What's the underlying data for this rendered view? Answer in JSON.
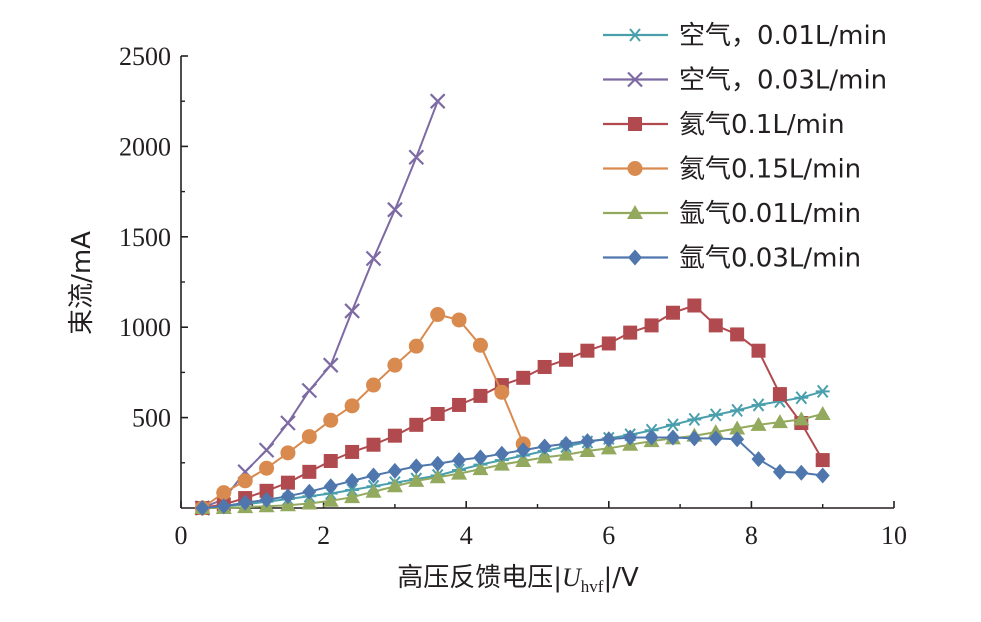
{
  "chart_data": {
    "type": "line",
    "xlabel_main": "高压反馈电压|",
    "xlabel_var": "U",
    "xlabel_sub": "hvf",
    "xlabel_tail": "|/V",
    "ylabel": "束流/mA",
    "xlim": [
      0,
      10
    ],
    "ylim": [
      0,
      2500
    ],
    "xticks": [
      "0",
      "2",
      "4",
      "6",
      "8",
      "10"
    ],
    "yticks": [
      "500",
      "1000",
      "1500",
      "2000",
      "2500"
    ],
    "legend_position": "top-right",
    "series": [
      {
        "name": "空气，0.01L/min",
        "color": "#4a9fad",
        "marker": "asterisk",
        "x": [
          0.3,
          0.6,
          0.9,
          1.2,
          1.5,
          1.8,
          2.1,
          2.4,
          2.7,
          3.0,
          3.3,
          3.6,
          3.9,
          4.2,
          4.5,
          4.8,
          5.1,
          5.4,
          5.7,
          6.0,
          6.3,
          6.6,
          6.9,
          7.2,
          7.5,
          7.8,
          8.1,
          8.4,
          8.7,
          9.0
        ],
        "y": [
          0,
          10,
          20,
          35,
          50,
          65,
          80,
          100,
          120,
          140,
          160,
          180,
          210,
          240,
          265,
          290,
          315,
          340,
          365,
          385,
          405,
          430,
          460,
          490,
          515,
          540,
          570,
          590,
          610,
          645
        ]
      },
      {
        "name": "空气，0.03L/min",
        "color": "#7d6aa3",
        "marker": "x",
        "x": [
          0.3,
          0.6,
          0.9,
          1.2,
          1.5,
          1.8,
          2.1,
          2.4,
          2.7,
          3.0,
          3.3,
          3.6
        ],
        "y": [
          0,
          50,
          200,
          320,
          470,
          650,
          790,
          1090,
          1380,
          1650,
          1940,
          2250
        ]
      },
      {
        "name": "氦气0.1L/min",
        "color": "#b04a4e",
        "marker": "square",
        "x": [
          0.3,
          0.6,
          0.9,
          1.2,
          1.5,
          1.8,
          2.1,
          2.4,
          2.7,
          3.0,
          3.3,
          3.6,
          3.9,
          4.2,
          4.5,
          4.8,
          5.1,
          5.4,
          5.7,
          6.0,
          6.3,
          6.6,
          6.9,
          7.2,
          7.5,
          7.8,
          8.1,
          8.4,
          8.7,
          9.0
        ],
        "y": [
          0,
          20,
          55,
          95,
          140,
          200,
          260,
          310,
          350,
          400,
          460,
          520,
          570,
          620,
          680,
          720,
          780,
          820,
          870,
          910,
          970,
          1010,
          1080,
          1120,
          1010,
          960,
          870,
          630,
          470,
          265
        ]
      },
      {
        "name": "氦气0.15L/min",
        "color": "#d98a4e",
        "marker": "circle",
        "x": [
          0.3,
          0.6,
          0.9,
          1.2,
          1.5,
          1.8,
          2.1,
          2.4,
          2.7,
          3.0,
          3.3,
          3.6,
          3.9,
          4.2,
          4.5,
          4.8
        ],
        "y": [
          0,
          85,
          150,
          220,
          305,
          395,
          485,
          565,
          680,
          790,
          895,
          1070,
          1040,
          900,
          640,
          355
        ]
      },
      {
        "name": "氩气0.01L/min",
        "color": "#93aa5e",
        "marker": "triangle",
        "x": [
          0.3,
          0.6,
          0.9,
          1.2,
          1.5,
          1.8,
          2.1,
          2.4,
          2.7,
          3.0,
          3.3,
          3.6,
          3.9,
          4.2,
          4.5,
          4.8,
          5.1,
          5.4,
          5.7,
          6.0,
          6.3,
          6.6,
          6.9,
          7.2,
          7.5,
          7.8,
          8.1,
          8.4,
          8.7,
          9.0
        ],
        "y": [
          0,
          0,
          5,
          10,
          15,
          25,
          40,
          60,
          90,
          120,
          150,
          170,
          190,
          215,
          240,
          260,
          280,
          295,
          315,
          330,
          350,
          370,
          385,
          400,
          420,
          440,
          460,
          475,
          490,
          520
        ]
      },
      {
        "name": "氩气0.03L/min",
        "color": "#4f77ad",
        "marker": "diamond",
        "x": [
          0.3,
          0.6,
          0.9,
          1.2,
          1.5,
          1.8,
          2.1,
          2.4,
          2.7,
          3.0,
          3.3,
          3.6,
          3.9,
          4.2,
          4.5,
          4.8,
          5.1,
          5.4,
          5.7,
          6.0,
          6.3,
          6.6,
          6.9,
          7.2,
          7.5,
          7.8,
          8.1,
          8.4,
          8.7,
          9.0
        ],
        "y": [
          0,
          10,
          30,
          45,
          65,
          90,
          120,
          150,
          180,
          205,
          230,
          245,
          265,
          280,
          300,
          320,
          340,
          355,
          370,
          380,
          390,
          390,
          390,
          385,
          385,
          380,
          270,
          200,
          195,
          180
        ]
      }
    ]
  }
}
